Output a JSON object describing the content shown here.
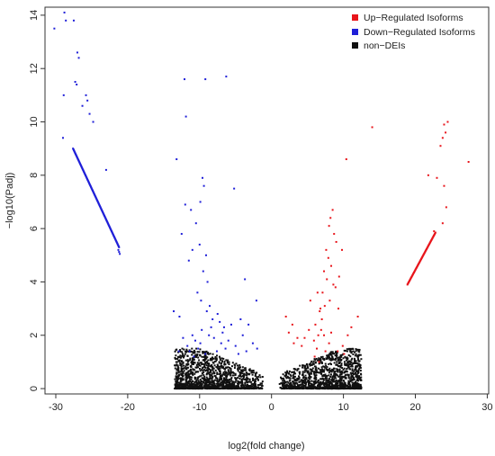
{
  "chart_data": {
    "type": "scatter",
    "title": "",
    "xlabel": "log2(fold change)",
    "ylabel": "−log10(Padj)",
    "xlim": [
      -31.5,
      30.2
    ],
    "ylim": [
      -0.2,
      14.3
    ],
    "xticks": [
      -30,
      -20,
      -10,
      0,
      10,
      20,
      30
    ],
    "yticks": [
      0,
      2,
      4,
      6,
      8,
      10,
      12,
      14
    ],
    "grid": false,
    "legend_position": "top-right",
    "colors": {
      "up": "#e8151b",
      "down": "#1f1fd8",
      "non": "#111111"
    },
    "series": [
      {
        "name": "Up-Regulated Isoforms",
        "key": "up",
        "points": [
          [
            24.0,
            9.9
          ],
          [
            24.5,
            10.0
          ],
          [
            24.2,
            9.6
          ],
          [
            23.8,
            9.4
          ],
          [
            23.5,
            9.1
          ],
          [
            27.4,
            8.5
          ],
          [
            21.8,
            8.0
          ],
          [
            23.0,
            7.9
          ],
          [
            24.0,
            7.6
          ],
          [
            24.3,
            6.8
          ],
          [
            23.8,
            6.2
          ],
          [
            14.0,
            9.8
          ],
          [
            10.4,
            8.6
          ],
          [
            22.6,
            5.9
          ],
          [
            8.5,
            6.7
          ],
          [
            8.2,
            6.4
          ],
          [
            8.0,
            6.1
          ],
          [
            8.7,
            5.8
          ],
          [
            9.0,
            5.5
          ],
          [
            7.6,
            5.2
          ],
          [
            7.9,
            4.9
          ],
          [
            8.3,
            4.6
          ],
          [
            7.3,
            4.4
          ],
          [
            7.7,
            4.1
          ],
          [
            8.9,
            3.8
          ],
          [
            7.1,
            3.6
          ],
          [
            9.8,
            5.2
          ],
          [
            8.1,
            3.3
          ],
          [
            7.4,
            3.1
          ],
          [
            9.3,
            3.0
          ],
          [
            6.7,
            2.9
          ],
          [
            7.0,
            2.6
          ],
          [
            12.0,
            2.7
          ],
          [
            11.1,
            2.3
          ],
          [
            10.6,
            2.0
          ],
          [
            9.9,
            1.6
          ],
          [
            5.4,
            3.3
          ],
          [
            6.1,
            2.4
          ],
          [
            6.5,
            2.0
          ],
          [
            5.9,
            1.8
          ],
          [
            2.0,
            2.7
          ],
          [
            2.9,
            2.4
          ],
          [
            2.4,
            2.1
          ],
          [
            3.6,
            1.9
          ],
          [
            4.2,
            1.6
          ],
          [
            3.1,
            1.7
          ],
          [
            5.2,
            2.2
          ],
          [
            4.6,
            1.9
          ],
          [
            6.9,
            2.2
          ],
          [
            7.3,
            2.0
          ],
          [
            8.0,
            1.7
          ],
          [
            6.3,
            1.5
          ],
          [
            6.0,
            1.2
          ],
          [
            7.5,
            1.4
          ],
          [
            8.3,
            2.1
          ],
          [
            6.6,
            1.0
          ],
          [
            9.2,
            1.4
          ],
          [
            10.1,
            1.3
          ],
          [
            6.4,
            3.6
          ],
          [
            9.4,
            4.2
          ],
          [
            8.6,
            3.9
          ],
          [
            6.8,
            3.0
          ]
        ]
      },
      {
        "name": "Down-Regulated Isoforms",
        "key": "down",
        "points": [
          [
            -30.2,
            13.5
          ],
          [
            -28.8,
            14.1
          ],
          [
            -28.6,
            13.8
          ],
          [
            -27.5,
            13.8
          ],
          [
            -27.0,
            12.6
          ],
          [
            -26.8,
            12.4
          ],
          [
            -27.3,
            11.5
          ],
          [
            -27.1,
            11.4
          ],
          [
            -25.8,
            11.0
          ],
          [
            -25.6,
            10.8
          ],
          [
            -26.3,
            10.6
          ],
          [
            -28.9,
            11.0
          ],
          [
            -25.3,
            10.3
          ],
          [
            -24.8,
            10.0
          ],
          [
            -23.0,
            8.2
          ],
          [
            -29.0,
            9.4
          ],
          [
            -12.1,
            11.6
          ],
          [
            -11.9,
            10.2
          ],
          [
            -9.2,
            11.6
          ],
          [
            -6.3,
            11.7
          ],
          [
            -13.2,
            8.6
          ],
          [
            -9.6,
            7.9
          ],
          [
            -9.4,
            7.6
          ],
          [
            -9.9,
            7.0
          ],
          [
            -12.0,
            6.9
          ],
          [
            -11.2,
            6.7
          ],
          [
            -10.5,
            6.2
          ],
          [
            -12.5,
            5.8
          ],
          [
            -11.0,
            5.2
          ],
          [
            -10.0,
            5.4
          ],
          [
            -9.1,
            5.0
          ],
          [
            -11.5,
            4.8
          ],
          [
            -5.2,
            7.5
          ],
          [
            -3.7,
            4.1
          ],
          [
            -2.1,
            3.3
          ],
          [
            -9.5,
            4.4
          ],
          [
            -8.9,
            4.0
          ],
          [
            -10.3,
            3.6
          ],
          [
            -9.8,
            3.3
          ],
          [
            -8.6,
            3.1
          ],
          [
            -13.6,
            2.9
          ],
          [
            -12.8,
            2.7
          ],
          [
            -9.0,
            2.9
          ],
          [
            -8.2,
            2.6
          ],
          [
            -7.5,
            2.8
          ],
          [
            -7.2,
            2.5
          ],
          [
            -6.6,
            2.3
          ],
          [
            -8.4,
            2.3
          ],
          [
            -9.7,
            2.2
          ],
          [
            -11.0,
            2.0
          ],
          [
            -12.3,
            1.9
          ],
          [
            -10.6,
            1.8
          ],
          [
            -11.7,
            1.6
          ],
          [
            -12.9,
            1.4
          ],
          [
            -10.2,
            1.5
          ],
          [
            -8.0,
            1.9
          ],
          [
            -7.0,
            1.7
          ],
          [
            -6.0,
            1.8
          ],
          [
            -5.0,
            1.6
          ],
          [
            -4.0,
            2.0
          ],
          [
            -3.2,
            2.4
          ],
          [
            -2.6,
            1.7
          ],
          [
            -2.0,
            1.5
          ],
          [
            -3.5,
            1.4
          ],
          [
            -4.6,
            1.3
          ],
          [
            -6.4,
            1.5
          ],
          [
            -7.6,
            1.4
          ],
          [
            -9.2,
            1.3
          ],
          [
            -10.8,
            1.2
          ],
          [
            -11.4,
            1.4
          ],
          [
            -5.6,
            2.4
          ],
          [
            -6.8,
            2.1
          ],
          [
            -8.7,
            2.0
          ],
          [
            -9.9,
            1.7
          ],
          [
            -4.3,
            2.6
          ]
        ],
        "segments": [
          {
            "x1": -27.6,
            "y1": 9.0,
            "x2": -21.2,
            "y2": 5.3,
            "n": 130
          },
          {
            "x1": -21.3,
            "y1": 5.2,
            "x2": -21.1,
            "y2": 5.05,
            "n": 3
          }
        ],
        "segments_up": []
      },
      {
        "name": "non-DEIs",
        "key": "non",
        "points": []
      }
    ],
    "up_segments": [
      {
        "x1": 18.9,
        "y1": 3.9,
        "x2": 22.8,
        "y2": 5.85,
        "n": 70
      }
    ],
    "non_cloud": {
      "count": 2600,
      "left_range": [
        -13.5,
        -1.1
      ],
      "right_range": [
        1.1,
        12.5
      ],
      "max_y": 1.5
    },
    "legend": [
      {
        "key": "up",
        "label": "Up−Regulated Isoforms"
      },
      {
        "key": "down",
        "label": "Down−Regulated Isoforms"
      },
      {
        "key": "non",
        "label": "non−DEIs"
      }
    ]
  }
}
